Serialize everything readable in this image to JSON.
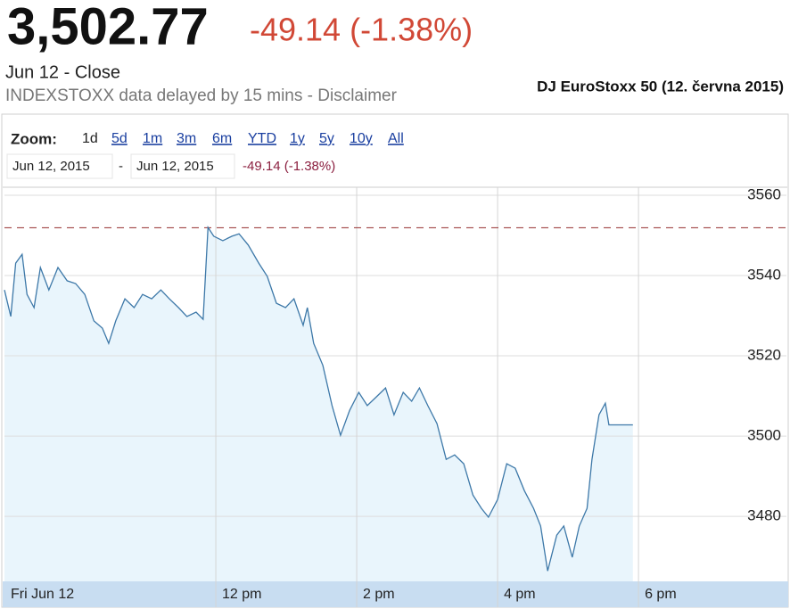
{
  "header": {
    "price": "3,502.77",
    "change": "-49.14 (-1.38%)",
    "date_label": "Jun 12 - Close",
    "delay_note": "INDEXSTOXX data delayed by 15 mins - Disclaimer",
    "caption": "DJ EuroStoxx 50 (12. června 2015)"
  },
  "zoom": {
    "label": "Zoom:",
    "options": [
      "1d",
      "5d",
      "1m",
      "3m",
      "6m",
      "YTD",
      "1y",
      "5y",
      "10y",
      "All"
    ]
  },
  "range": {
    "start": "Jun 12, 2015",
    "separator": "-",
    "end": "Jun 12, 2015",
    "change": "-49.14 (-1.38%)"
  },
  "chart_data": {
    "type": "line",
    "x": [
      9.0,
      9.09,
      9.16,
      9.25,
      9.32,
      9.42,
      9.51,
      9.63,
      9.76,
      9.89,
      10.01,
      10.14,
      10.27,
      10.39,
      10.48,
      10.58,
      10.71,
      10.84,
      10.96,
      11.09,
      11.22,
      11.34,
      11.47,
      11.59,
      11.72,
      11.82,
      11.89,
      11.97,
      12.1,
      12.23,
      12.33,
      12.46,
      12.61,
      12.73,
      12.86,
      12.99,
      13.11,
      13.24,
      13.3,
      13.39,
      13.52,
      13.65,
      13.77,
      13.9,
      14.03,
      14.15,
      14.28,
      14.41,
      14.53,
      14.66,
      14.78,
      14.89,
      15.01,
      15.14,
      15.27,
      15.39,
      15.52,
      15.65,
      15.77,
      15.87,
      16.0,
      16.13,
      16.25,
      16.38,
      16.51,
      16.61,
      16.71,
      16.84,
      16.94,
      17.06,
      17.16,
      17.27,
      17.34,
      17.44,
      17.53,
      17.58,
      17.92
    ],
    "values": [
      3536.4,
      3529.8,
      3543.1,
      3545.3,
      3535.3,
      3532.0,
      3542.0,
      3536.4,
      3542.0,
      3538.7,
      3538.0,
      3535.3,
      3528.7,
      3526.9,
      3523.1,
      3528.7,
      3534.2,
      3532.0,
      3535.3,
      3534.2,
      3536.4,
      3534.2,
      3532.0,
      3529.8,
      3530.9,
      3529.1,
      3552.0,
      3549.8,
      3548.7,
      3549.8,
      3550.4,
      3547.6,
      3543.1,
      3539.8,
      3533.1,
      3532.0,
      3534.2,
      3527.6,
      3532.0,
      3523.1,
      3517.6,
      3507.6,
      3500.2,
      3506.4,
      3510.9,
      3507.6,
      3509.8,
      3512.0,
      3505.3,
      3510.9,
      3508.7,
      3512.0,
      3507.6,
      3503.1,
      3494.2,
      3495.3,
      3493.1,
      3485.3,
      3482.0,
      3479.8,
      3484.2,
      3493.1,
      3492.0,
      3486.4,
      3482.0,
      3477.6,
      3466.4,
      3475.3,
      3477.6,
      3469.8,
      3477.6,
      3482.0,
      3494.2,
      3505.3,
      3508.2,
      3502.8,
      3502.8
    ],
    "color": "#3d78a8",
    "area_color": "#e9f5fc",
    "reference_line": 3551.9,
    "reference_color": "#a04545",
    "xlim": [
      9,
      20.1
    ],
    "xticks": [
      {
        "value": 9,
        "label": "Fri Jun 12"
      },
      {
        "value": 12,
        "label": "12 pm"
      },
      {
        "value": 14,
        "label": "2 pm"
      },
      {
        "value": 16,
        "label": "4 pm"
      },
      {
        "value": 18,
        "label": "6 pm"
      }
    ],
    "ylim": [
      3463.8,
      3562
    ],
    "yticks": [
      3480,
      3500,
      3520,
      3540,
      3560
    ],
    "grid": true
  }
}
